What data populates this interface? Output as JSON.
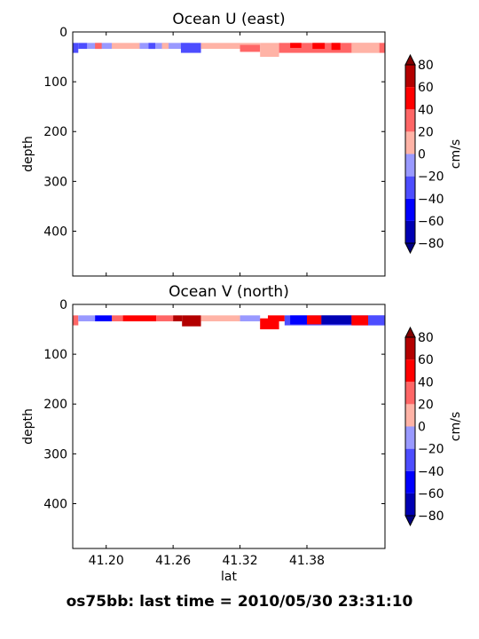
{
  "figure": {
    "suptitle": "os75bb: last time = 2010/05/30 23:31:10"
  },
  "chart_data": [
    {
      "type": "heatmap",
      "title": "Ocean U (east)",
      "xlabel": "",
      "ylabel": "depth",
      "xlim": [
        41.17,
        41.45
      ],
      "ylim": [
        490,
        0
      ],
      "y_inverted": true,
      "yticks": [
        0,
        100,
        200,
        300,
        400
      ],
      "xticks": [
        41.2,
        41.26,
        41.32,
        41.38
      ],
      "xtick_labels": [],
      "colorbar": {
        "label": "cm/s",
        "ticks": [
          80,
          60,
          40,
          20,
          0,
          -20,
          -40,
          -60,
          -80
        ],
        "levels": [
          -80,
          -60,
          -40,
          -20,
          0,
          20,
          40,
          60,
          80
        ],
        "colors": [
          "#0000b3",
          "#0000ff",
          "#4d4dff",
          "#9999ff",
          "#ffb3a6",
          "#ff6666",
          "#ff0000",
          "#b30000"
        ],
        "extend": "both"
      },
      "cells": [
        {
          "x0": 41.17,
          "x1": 41.175,
          "y0": 22,
          "y1": 42,
          "value": -30
        },
        {
          "x0": 41.175,
          "x1": 41.183,
          "y0": 22,
          "y1": 34,
          "value": -30
        },
        {
          "x0": 41.183,
          "x1": 41.205,
          "y0": 22,
          "y1": 34,
          "value": -5
        },
        {
          "x0": 41.19,
          "x1": 41.196,
          "y0": 22,
          "y1": 34,
          "value": 30
        },
        {
          "x0": 41.205,
          "x1": 41.23,
          "y0": 22,
          "y1": 34,
          "value": 10
        },
        {
          "x0": 41.23,
          "x1": 41.275,
          "y0": 22,
          "y1": 34,
          "value": -10
        },
        {
          "x0": 41.238,
          "x1": 41.244,
          "y0": 22,
          "y1": 34,
          "value": -35
        },
        {
          "x0": 41.25,
          "x1": 41.256,
          "y0": 22,
          "y1": 34,
          "value": 5
        },
        {
          "x0": 41.267,
          "x1": 41.285,
          "y0": 22,
          "y1": 42,
          "value": -30
        },
        {
          "x0": 41.285,
          "x1": 41.338,
          "y0": 22,
          "y1": 34,
          "value": 10
        },
        {
          "x0": 41.32,
          "x1": 41.338,
          "y0": 26,
          "y1": 40,
          "value": 25
        },
        {
          "x0": 41.338,
          "x1": 41.355,
          "y0": 22,
          "y1": 50,
          "value": 10
        },
        {
          "x0": 41.355,
          "x1": 41.45,
          "y0": 22,
          "y1": 42,
          "value": 30
        },
        {
          "x0": 41.365,
          "x1": 41.375,
          "y0": 22,
          "y1": 32,
          "value": 45
        },
        {
          "x0": 41.385,
          "x1": 41.396,
          "y0": 22,
          "y1": 34,
          "value": 40
        },
        {
          "x0": 41.402,
          "x1": 41.41,
          "y0": 22,
          "y1": 36,
          "value": 45
        },
        {
          "x0": 41.42,
          "x1": 41.445,
          "y0": 22,
          "y1": 42,
          "value": 15
        }
      ]
    },
    {
      "type": "heatmap",
      "title": "Ocean V (north)",
      "xlabel": "lat",
      "ylabel": "depth",
      "xlim": [
        41.17,
        41.45
      ],
      "ylim": [
        490,
        0
      ],
      "y_inverted": true,
      "yticks": [
        0,
        100,
        200,
        300,
        400
      ],
      "xticks": [
        41.2,
        41.26,
        41.32,
        41.38
      ],
      "xtick_labels": [
        "41.20",
        "41.26",
        "41.32",
        "41.38"
      ],
      "colorbar": {
        "label": "cm/s",
        "ticks": [
          80,
          60,
          40,
          20,
          0,
          -20,
          -40,
          -60,
          -80
        ],
        "levels": [
          -80,
          -60,
          -40,
          -20,
          0,
          20,
          40,
          60,
          80
        ],
        "colors": [
          "#0000b3",
          "#0000ff",
          "#4d4dff",
          "#9999ff",
          "#ffb3a6",
          "#ff6666",
          "#ff0000",
          "#b30000"
        ],
        "extend": "both"
      },
      "cells": [
        {
          "x0": 41.17,
          "x1": 41.175,
          "y0": 22,
          "y1": 42,
          "value": 30
        },
        {
          "x0": 41.175,
          "x1": 41.19,
          "y0": 22,
          "y1": 34,
          "value": -15
        },
        {
          "x0": 41.19,
          "x1": 41.205,
          "y0": 22,
          "y1": 34,
          "value": -45
        },
        {
          "x0": 41.205,
          "x1": 41.215,
          "y0": 22,
          "y1": 34,
          "value": 25
        },
        {
          "x0": 41.215,
          "x1": 41.245,
          "y0": 22,
          "y1": 34,
          "value": 55
        },
        {
          "x0": 41.245,
          "x1": 41.26,
          "y0": 22,
          "y1": 34,
          "value": 30
        },
        {
          "x0": 41.26,
          "x1": 41.268,
          "y0": 22,
          "y1": 34,
          "value": 60
        },
        {
          "x0": 41.268,
          "x1": 41.285,
          "y0": 22,
          "y1": 44,
          "value": 70
        },
        {
          "x0": 41.285,
          "x1": 41.32,
          "y0": 22,
          "y1": 34,
          "value": 10
        },
        {
          "x0": 41.32,
          "x1": 41.338,
          "y0": 22,
          "y1": 34,
          "value": -15
        },
        {
          "x0": 41.338,
          "x1": 41.355,
          "y0": 28,
          "y1": 50,
          "value": 50
        },
        {
          "x0": 41.345,
          "x1": 41.36,
          "y0": 22,
          "y1": 34,
          "value": 40
        },
        {
          "x0": 41.36,
          "x1": 41.45,
          "y0": 22,
          "y1": 42,
          "value": -30
        },
        {
          "x0": 41.365,
          "x1": 41.38,
          "y0": 22,
          "y1": 40,
          "value": -60
        },
        {
          "x0": 41.38,
          "x1": 41.393,
          "y0": 22,
          "y1": 40,
          "value": 40
        },
        {
          "x0": 41.393,
          "x1": 41.42,
          "y0": 22,
          "y1": 40,
          "value": -75
        },
        {
          "x0": 41.42,
          "x1": 41.435,
          "y0": 22,
          "y1": 42,
          "value": 40
        },
        {
          "x0": 41.435,
          "x1": 41.45,
          "y0": 22,
          "y1": 42,
          "value": -40
        }
      ]
    }
  ]
}
